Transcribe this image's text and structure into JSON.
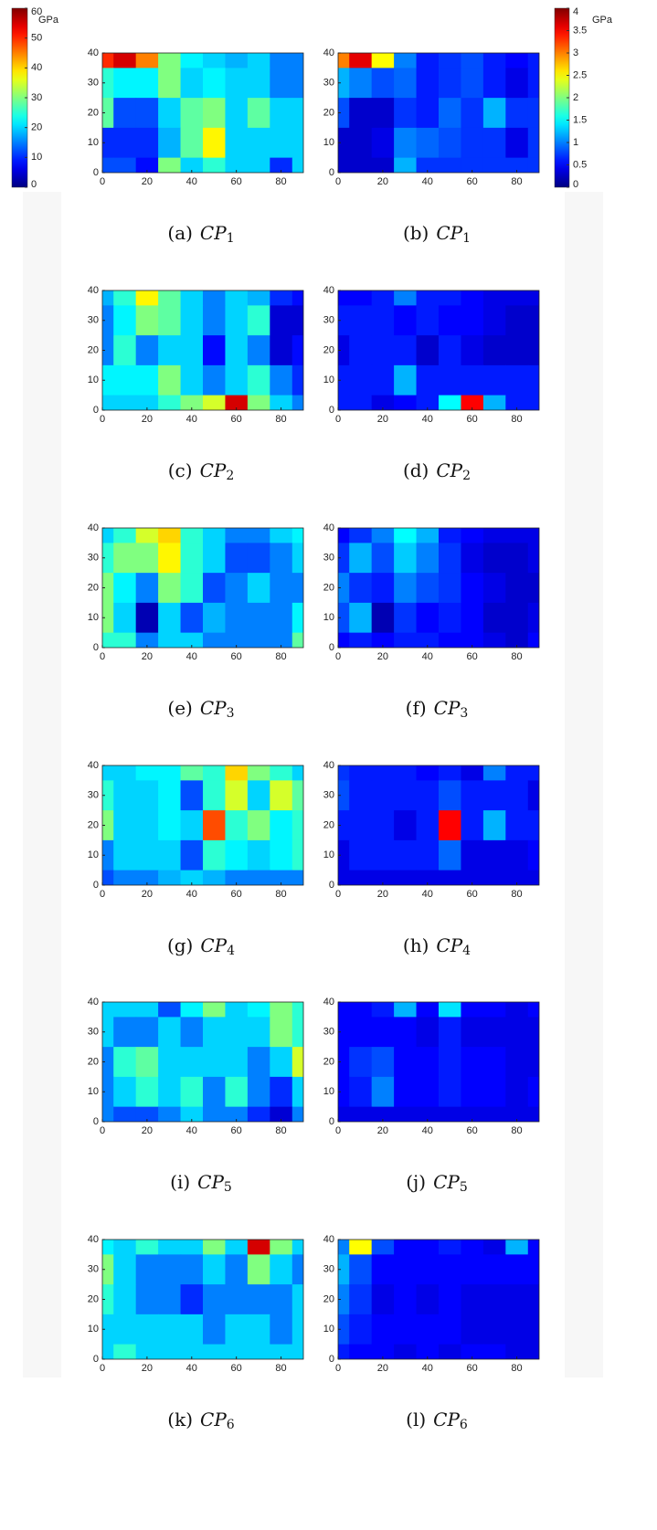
{
  "colorbars": [
    {
      "label": "GPa",
      "lim": [
        0,
        60
      ],
      "ticks": [
        0,
        10,
        20,
        30,
        40,
        50,
        60
      ]
    },
    {
      "label": "GPa",
      "lim": [
        0,
        4
      ],
      "ticks": [
        0,
        0.5,
        1,
        1.5,
        2,
        2.5,
        3,
        3.5,
        4
      ]
    }
  ],
  "chart_data": [
    {
      "type": "contour",
      "caption": {
        "label": "(a)",
        "symbol": "CP",
        "sub": "1"
      },
      "x": [
        0,
        10,
        20,
        30,
        40,
        50,
        60,
        70,
        80,
        90
      ],
      "y": [
        40,
        30,
        20,
        10,
        0
      ],
      "clim": [
        0,
        60
      ],
      "xlim": [
        0,
        90
      ],
      "ylim": [
        0,
        40
      ],
      "xticks": [
        0,
        20,
        40,
        60,
        80
      ],
      "yticks": [
        0,
        10,
        20,
        30,
        40
      ],
      "values": [
        [
          50,
          55,
          45,
          30,
          22,
          20,
          18,
          20,
          15,
          15
        ],
        [
          25,
          22,
          22,
          30,
          20,
          22,
          20,
          20,
          15,
          15
        ],
        [
          28,
          12,
          12,
          20,
          28,
          30,
          20,
          28,
          20,
          20
        ],
        [
          10,
          10,
          10,
          18,
          28,
          38,
          20,
          20,
          20,
          20
        ],
        [
          12,
          12,
          8,
          30,
          20,
          25,
          20,
          20,
          10,
          20
        ]
      ]
    },
    {
      "type": "contour",
      "caption": {
        "label": "(b)",
        "symbol": "CP",
        "sub": "1"
      },
      "x": [
        0,
        10,
        20,
        30,
        40,
        50,
        60,
        70,
        80,
        90
      ],
      "y": [
        40,
        30,
        20,
        10,
        0
      ],
      "clim": [
        0,
        4
      ],
      "xlim": [
        0,
        90
      ],
      "ylim": [
        0,
        40
      ],
      "xticks": [
        0,
        20,
        40,
        60,
        80
      ],
      "yticks": [
        0,
        10,
        20,
        30,
        40
      ],
      "values": [
        [
          3,
          3.6,
          2.5,
          1,
          0.6,
          0.7,
          0.8,
          0.6,
          0.5,
          0.6
        ],
        [
          1.2,
          1,
          0.8,
          0.9,
          0.6,
          0.7,
          0.8,
          0.6,
          0.4,
          0.6
        ],
        [
          0.8,
          0.3,
          0.3,
          0.7,
          0.6,
          0.9,
          0.7,
          1.2,
          0.7,
          0.7
        ],
        [
          0.3,
          0.3,
          0.4,
          1,
          0.9,
          0.8,
          0.7,
          0.7,
          0.4,
          0.7
        ],
        [
          0.3,
          0.3,
          0.3,
          1.2,
          0.7,
          0.7,
          0.7,
          0.7,
          0.7,
          0.7
        ]
      ]
    },
    {
      "type": "contour",
      "caption": {
        "label": "(c)",
        "symbol": "CP",
        "sub": "2"
      },
      "x": [
        0,
        10,
        20,
        30,
        40,
        50,
        60,
        70,
        80,
        90
      ],
      "y": [
        40,
        30,
        20,
        10,
        0
      ],
      "clim": [
        0,
        60
      ],
      "xlim": [
        0,
        90
      ],
      "ylim": [
        0,
        40
      ],
      "xticks": [
        0,
        20,
        40,
        60,
        80
      ],
      "yticks": [
        0,
        10,
        20,
        30,
        40
      ],
      "values": [
        [
          18,
          25,
          38,
          28,
          20,
          15,
          20,
          18,
          10,
          8
        ],
        [
          15,
          22,
          30,
          28,
          20,
          15,
          20,
          25,
          5,
          5
        ],
        [
          15,
          25,
          15,
          20,
          20,
          8,
          20,
          15,
          5,
          8
        ],
        [
          22,
          22,
          22,
          30,
          20,
          15,
          20,
          25,
          15,
          10
        ],
        [
          20,
          20,
          20,
          25,
          30,
          35,
          55,
          30,
          20,
          15
        ]
      ]
    },
    {
      "type": "contour",
      "caption": {
        "label": "(d)",
        "symbol": "CP",
        "sub": "2"
      },
      "x": [
        0,
        10,
        20,
        30,
        40,
        50,
        60,
        70,
        80,
        90
      ],
      "y": [
        40,
        30,
        20,
        10,
        0
      ],
      "clim": [
        0,
        4
      ],
      "xlim": [
        0,
        90
      ],
      "ylim": [
        0,
        40
      ],
      "xticks": [
        0,
        20,
        40,
        60,
        80
      ],
      "yticks": [
        0,
        10,
        20,
        30,
        40
      ],
      "values": [
        [
          0.5,
          0.5,
          0.6,
          1,
          0.6,
          0.6,
          0.5,
          0.4,
          0.4,
          0.4
        ],
        [
          0.6,
          0.6,
          0.6,
          0.5,
          0.6,
          0.5,
          0.5,
          0.4,
          0.3,
          0.3
        ],
        [
          0.4,
          0.6,
          0.6,
          0.6,
          0.3,
          0.6,
          0.4,
          0.3,
          0.3,
          0.3
        ],
        [
          0.6,
          0.6,
          0.6,
          1.2,
          0.6,
          0.6,
          0.6,
          0.6,
          0.6,
          0.6
        ],
        [
          0.6,
          0.6,
          0.4,
          0.5,
          0.6,
          1.5,
          3.5,
          1.2,
          0.6,
          0.6
        ]
      ]
    },
    {
      "type": "contour",
      "caption": {
        "label": "(e)",
        "symbol": "CP",
        "sub": "3"
      },
      "x": [
        0,
        10,
        20,
        30,
        40,
        50,
        60,
        70,
        80,
        90
      ],
      "y": [
        40,
        30,
        20,
        10,
        0
      ],
      "clim": [
        0,
        60
      ],
      "xlim": [
        0,
        90
      ],
      "ylim": [
        0,
        40
      ],
      "xticks": [
        0,
        20,
        40,
        60,
        80
      ],
      "yticks": [
        0,
        10,
        20,
        30,
        40
      ],
      "values": [
        [
          20,
          25,
          35,
          40,
          25,
          20,
          15,
          15,
          20,
          22
        ],
        [
          25,
          30,
          30,
          38,
          25,
          20,
          12,
          12,
          15,
          20
        ],
        [
          30,
          22,
          15,
          30,
          25,
          12,
          15,
          20,
          15,
          15
        ],
        [
          30,
          20,
          3,
          20,
          12,
          18,
          15,
          15,
          15,
          22
        ],
        [
          25,
          25,
          15,
          20,
          20,
          15,
          15,
          15,
          15,
          28
        ]
      ]
    },
    {
      "type": "contour",
      "caption": {
        "label": "(f)",
        "symbol": "CP",
        "sub": "3"
      },
      "x": [
        0,
        10,
        20,
        30,
        40,
        50,
        60,
        70,
        80,
        90
      ],
      "y": [
        40,
        30,
        20,
        10,
        0
      ],
      "clim": [
        0,
        4
      ],
      "xlim": [
        0,
        90
      ],
      "ylim": [
        0,
        40
      ],
      "xticks": [
        0,
        20,
        40,
        60,
        80
      ],
      "yticks": [
        0,
        10,
        20,
        30,
        40
      ],
      "values": [
        [
          0.5,
          0.7,
          1,
          1.5,
          1.2,
          0.6,
          0.5,
          0.4,
          0.4,
          0.4
        ],
        [
          0.7,
          1.2,
          0.8,
          1.3,
          1,
          0.7,
          0.4,
          0.3,
          0.3,
          0.4
        ],
        [
          1,
          0.7,
          0.6,
          1,
          0.8,
          0.7,
          0.5,
          0.4,
          0.3,
          0.3
        ],
        [
          0.8,
          1.2,
          0.2,
          0.7,
          0.5,
          0.6,
          0.5,
          0.3,
          0.3,
          0.4
        ],
        [
          0.5,
          0.6,
          0.5,
          0.6,
          0.6,
          0.5,
          0.5,
          0.4,
          0.3,
          0.5
        ]
      ]
    },
    {
      "type": "contour",
      "caption": {
        "label": "(g)",
        "symbol": "CP",
        "sub": "4"
      },
      "x": [
        0,
        10,
        20,
        30,
        40,
        50,
        60,
        70,
        80,
        90
      ],
      "y": [
        40,
        30,
        20,
        10,
        0
      ],
      "clim": [
        0,
        60
      ],
      "xlim": [
        0,
        90
      ],
      "ylim": [
        0,
        40
      ],
      "xticks": [
        0,
        20,
        40,
        60,
        80
      ],
      "yticks": [
        0,
        10,
        20,
        30,
        40
      ],
      "values": [
        [
          20,
          20,
          22,
          22,
          28,
          25,
          40,
          30,
          25,
          20
        ],
        [
          25,
          20,
          20,
          22,
          12,
          25,
          35,
          20,
          35,
          28
        ],
        [
          30,
          20,
          20,
          22,
          20,
          48,
          25,
          30,
          22,
          25
        ],
        [
          15,
          20,
          20,
          20,
          12,
          25,
          22,
          20,
          22,
          25
        ],
        [
          12,
          15,
          15,
          18,
          20,
          18,
          15,
          15,
          15,
          15
        ]
      ]
    },
    {
      "type": "contour",
      "caption": {
        "label": "(h)",
        "symbol": "CP",
        "sub": "4"
      },
      "x": [
        0,
        10,
        20,
        30,
        40,
        50,
        60,
        70,
        80,
        90
      ],
      "y": [
        40,
        30,
        20,
        10,
        0
      ],
      "clim": [
        0,
        4
      ],
      "xlim": [
        0,
        90
      ],
      "ylim": [
        0,
        40
      ],
      "xticks": [
        0,
        20,
        40,
        60,
        80
      ],
      "yticks": [
        0,
        10,
        20,
        30,
        40
      ],
      "values": [
        [
          0.7,
          0.6,
          0.6,
          0.6,
          0.5,
          0.6,
          0.4,
          1.0,
          0.6,
          0.6
        ],
        [
          0.8,
          0.6,
          0.6,
          0.6,
          0.6,
          0.8,
          0.6,
          0.6,
          0.6,
          0.4
        ],
        [
          0.6,
          0.6,
          0.6,
          0.4,
          0.6,
          3.5,
          0.6,
          1.2,
          0.6,
          0.6
        ],
        [
          0.4,
          0.6,
          0.6,
          0.6,
          0.6,
          0.9,
          0.4,
          0.4,
          0.4,
          0.5
        ],
        [
          0.4,
          0.4,
          0.4,
          0.4,
          0.4,
          0.4,
          0.4,
          0.4,
          0.4,
          0.4
        ]
      ]
    },
    {
      "type": "contour",
      "caption": {
        "label": "(i)",
        "symbol": "CP",
        "sub": "5"
      },
      "x": [
        0,
        10,
        20,
        30,
        40,
        50,
        60,
        70,
        80,
        90
      ],
      "y": [
        40,
        30,
        20,
        10,
        0
      ],
      "clim": [
        0,
        60
      ],
      "xlim": [
        0,
        90
      ],
      "ylim": [
        0,
        40
      ],
      "xticks": [
        0,
        20,
        40,
        60,
        80
      ],
      "yticks": [
        0,
        10,
        20,
        30,
        40
      ],
      "values": [
        [
          20,
          20,
          20,
          12,
          22,
          30,
          20,
          22,
          30,
          25
        ],
        [
          20,
          15,
          15,
          20,
          15,
          20,
          20,
          20,
          30,
          25
        ],
        [
          15,
          25,
          28,
          20,
          20,
          20,
          20,
          15,
          20,
          35
        ],
        [
          15,
          20,
          25,
          20,
          25,
          15,
          25,
          15,
          10,
          20
        ],
        [
          15,
          12,
          12,
          15,
          20,
          15,
          15,
          10,
          5,
          15
        ]
      ]
    },
    {
      "type": "contour",
      "caption": {
        "label": "(j)",
        "symbol": "CP",
        "sub": "5"
      },
      "x": [
        0,
        10,
        20,
        30,
        40,
        50,
        60,
        70,
        80,
        90
      ],
      "y": [
        40,
        30,
        20,
        10,
        0
      ],
      "clim": [
        0,
        4
      ],
      "xlim": [
        0,
        90
      ],
      "ylim": [
        0,
        40
      ],
      "xticks": [
        0,
        20,
        40,
        60,
        80
      ],
      "yticks": [
        0,
        10,
        20,
        30,
        40
      ],
      "values": [
        [
          0.5,
          0.5,
          0.6,
          1.2,
          0.5,
          1.4,
          0.5,
          0.5,
          0.4,
          0.5
        ],
        [
          0.5,
          0.5,
          0.5,
          0.5,
          0.4,
          0.6,
          0.4,
          0.4,
          0.4,
          0.4
        ],
        [
          0.5,
          0.7,
          0.8,
          0.5,
          0.5,
          0.6,
          0.5,
          0.5,
          0.4,
          0.4
        ],
        [
          0.5,
          0.6,
          1,
          0.5,
          0.5,
          0.6,
          0.5,
          0.5,
          0.4,
          0.5
        ],
        [
          0.4,
          0.4,
          0.4,
          0.4,
          0.4,
          0.4,
          0.4,
          0.4,
          0.4,
          0.4
        ]
      ]
    },
    {
      "type": "contour",
      "caption": {
        "label": "(k)",
        "symbol": "CP",
        "sub": "6"
      },
      "x": [
        0,
        10,
        20,
        30,
        40,
        50,
        60,
        70,
        80,
        90
      ],
      "y": [
        40,
        30,
        20,
        10,
        0
      ],
      "clim": [
        0,
        60
      ],
      "xlim": [
        0,
        90
      ],
      "ylim": [
        0,
        40
      ],
      "xticks": [
        0,
        20,
        40,
        60,
        80
      ],
      "yticks": [
        0,
        10,
        20,
        30,
        40
      ],
      "values": [
        [
          22,
          20,
          25,
          20,
          20,
          30,
          20,
          55,
          30,
          20
        ],
        [
          30,
          20,
          15,
          15,
          15,
          20,
          15,
          30,
          20,
          15
        ],
        [
          25,
          20,
          15,
          15,
          10,
          15,
          15,
          15,
          15,
          20
        ],
        [
          20,
          20,
          20,
          20,
          20,
          15,
          20,
          20,
          15,
          20
        ],
        [
          20,
          25,
          20,
          20,
          20,
          20,
          20,
          20,
          20,
          20
        ]
      ]
    },
    {
      "type": "contour",
      "caption": {
        "label": "(l)",
        "symbol": "CP",
        "sub": "6"
      },
      "x": [
        0,
        10,
        20,
        30,
        40,
        50,
        60,
        70,
        80,
        90
      ],
      "y": [
        40,
        30,
        20,
        10,
        0
      ],
      "clim": [
        0,
        4
      ],
      "xlim": [
        0,
        90
      ],
      "ylim": [
        0,
        40
      ],
      "xticks": [
        0,
        20,
        40,
        60,
        80
      ],
      "yticks": [
        0,
        10,
        20,
        30,
        40
      ],
      "values": [
        [
          1,
          2.5,
          0.8,
          0.5,
          0.5,
          0.6,
          0.5,
          0.4,
          1.2,
          0.5
        ],
        [
          1.2,
          0.8,
          0.5,
          0.5,
          0.5,
          0.5,
          0.5,
          0.5,
          0.5,
          0.5
        ],
        [
          1.0,
          0.7,
          0.4,
          0.5,
          0.4,
          0.5,
          0.4,
          0.4,
          0.4,
          0.4
        ],
        [
          0.8,
          0.6,
          0.5,
          0.5,
          0.5,
          0.5,
          0.4,
          0.4,
          0.4,
          0.4
        ],
        [
          0.6,
          0.5,
          0.5,
          0.4,
          0.5,
          0.4,
          0.5,
          0.5,
          0.4,
          0.4
        ]
      ]
    }
  ]
}
